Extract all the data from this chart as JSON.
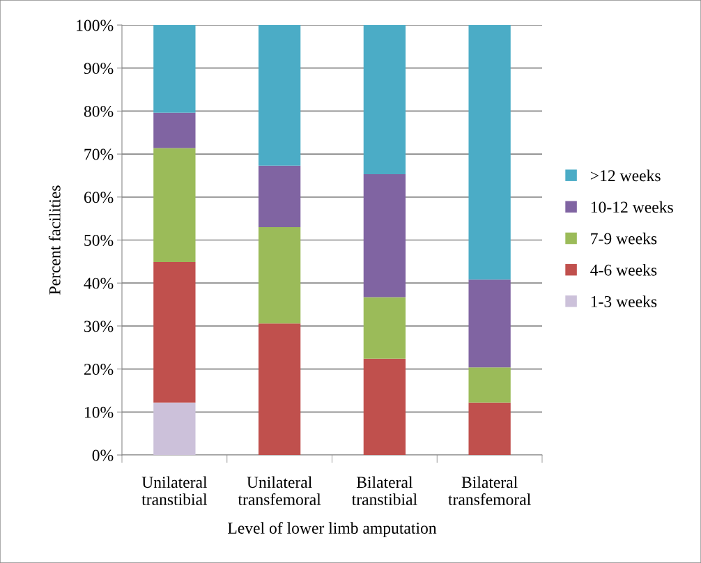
{
  "chart_data": {
    "type": "bar",
    "stacked": true,
    "xlabel": "Level of lower limb amputation",
    "ylabel": "Percent facilities",
    "categories": [
      "Unilateral\ntranstibial",
      "Unilateral\ntransfemoral",
      "Bilateral\ntranstibial",
      "Bilateral\ntransfemoral"
    ],
    "series": [
      {
        "name": "1-3 weeks",
        "color": "#ccc1da",
        "values": [
          12.2,
          0,
          0,
          0
        ]
      },
      {
        "name": "4-6 weeks",
        "color": "#c0504d",
        "values": [
          32.7,
          30.6,
          22.4,
          12.2
        ]
      },
      {
        "name": "7-9 weeks",
        "color": "#9bbb59",
        "values": [
          26.5,
          22.4,
          14.3,
          8.2
        ]
      },
      {
        "name": "10-12 weeks",
        "color": "#8064a2",
        "values": [
          8.2,
          14.3,
          28.6,
          20.4
        ]
      },
      {
        "name": ">12 weeks",
        "color": "#4bacc6",
        "values": [
          20.4,
          32.7,
          34.7,
          59.2
        ]
      }
    ],
    "ylim": [
      0,
      100
    ],
    "yticks": [
      {
        "value": 0,
        "label": "0%"
      },
      {
        "value": 10,
        "label": "10%"
      },
      {
        "value": 20,
        "label": "20%"
      },
      {
        "value": 30,
        "label": "30%"
      },
      {
        "value": 40,
        "label": "40%"
      },
      {
        "value": 50,
        "label": "50%"
      },
      {
        "value": 60,
        "label": "60%"
      },
      {
        "value": 70,
        "label": "70%"
      },
      {
        "value": 80,
        "label": "80%"
      },
      {
        "value": 90,
        "label": "90%"
      },
      {
        "value": 100,
        "label": "100%"
      }
    ],
    "grid": "y",
    "legend": "right"
  }
}
